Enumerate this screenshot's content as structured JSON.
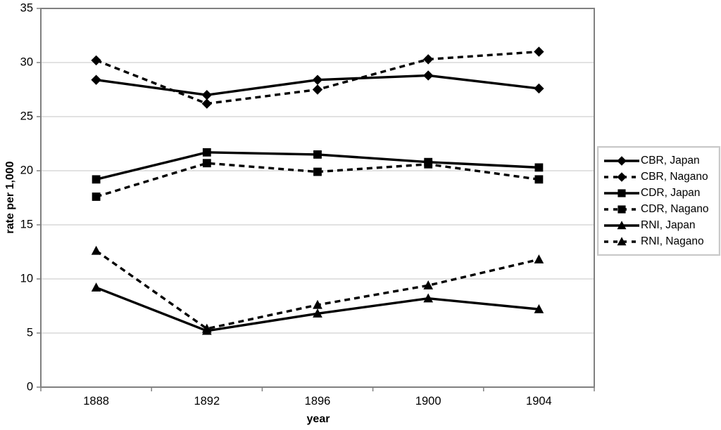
{
  "figure": {
    "background": "#ffffff",
    "plot_border_color": "#808080",
    "gridline_color": "#c6c6c6",
    "tick_color": "#808080",
    "series_color": "#000000",
    "legend_border_color": "#c9c9c9"
  },
  "chart_data": {
    "type": "line",
    "xlabel": "year",
    "ylabel": "rate per 1,000",
    "x_categories": [
      "1888",
      "1892",
      "1896",
      "1900",
      "1904"
    ],
    "y_ticks": [
      0,
      5,
      10,
      15,
      20,
      25,
      30,
      35
    ],
    "ylim": [
      0,
      35
    ],
    "grid": "horizontal-only",
    "legend_position": "right-outside",
    "series": [
      {
        "name": "CBR, Japan",
        "line": "solid",
        "marker": "diamond",
        "values": [
          28.4,
          27.0,
          28.4,
          28.8,
          27.6
        ]
      },
      {
        "name": "CBR, Nagano",
        "line": "dashed",
        "marker": "diamond",
        "values": [
          30.2,
          26.2,
          27.5,
          30.3,
          31.0
        ]
      },
      {
        "name": "CDR, Japan",
        "line": "solid",
        "marker": "square",
        "values": [
          19.2,
          21.7,
          21.5,
          20.8,
          20.3
        ]
      },
      {
        "name": "CDR, Nagano",
        "line": "dashed",
        "marker": "square",
        "values": [
          17.6,
          20.7,
          19.9,
          20.6,
          19.2
        ]
      },
      {
        "name": "RNI, Japan",
        "line": "solid",
        "marker": "triangle",
        "values": [
          9.2,
          5.2,
          6.8,
          8.2,
          7.2
        ]
      },
      {
        "name": "RNI, Nagano",
        "line": "dashed",
        "marker": "triangle",
        "values": [
          12.6,
          5.4,
          7.6,
          9.4,
          11.8
        ]
      }
    ]
  }
}
